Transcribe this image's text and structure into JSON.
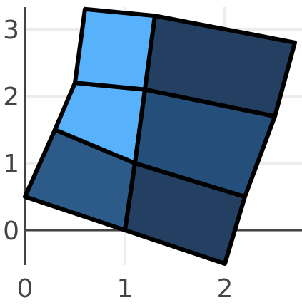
{
  "chart_data": {
    "type": "heatmap",
    "subtype": "quadrilateral-mesh",
    "title": "",
    "xlabel": "",
    "ylabel": "",
    "xlim": [
      0,
      2.7
    ],
    "ylim": [
      -0.5,
      3.3
    ],
    "xticks": [
      0,
      1,
      2
    ],
    "yticks": [
      0,
      1,
      2,
      3
    ],
    "x_tick_labels": [
      "0",
      "1",
      "2"
    ],
    "y_tick_labels": [
      "0",
      "1",
      "2",
      "3"
    ],
    "grid": true,
    "colors": {
      "grid": "#ececec",
      "axis": "#444444",
      "edge": "#000000",
      "cell_light": "#57b2fb",
      "cell_medium": "#2c5a89",
      "cell_dark": "#233f61",
      "cell_mid_dark": "#244f7b"
    },
    "nodes": {
      "x": [
        [
          0.0,
          1.0,
          2.0
        ],
        [
          0.3,
          1.1,
          2.2
        ],
        [
          0.5,
          1.2,
          2.5
        ],
        [
          0.6,
          1.3,
          2.7
        ]
      ],
      "y": [
        [
          0.5,
          0.0,
          -0.5
        ],
        [
          1.5,
          1.0,
          0.5
        ],
        [
          2.2,
          2.1,
          1.7
        ],
        [
          3.3,
          3.2,
          2.8
        ]
      ]
    },
    "cells": [
      {
        "row": 0,
        "col": 0,
        "color": "cell_medium"
      },
      {
        "row": 0,
        "col": 1,
        "color": "cell_dark"
      },
      {
        "row": 1,
        "col": 0,
        "color": "cell_light"
      },
      {
        "row": 1,
        "col": 1,
        "color": "cell_mid_dark"
      },
      {
        "row": 2,
        "col": 0,
        "color": "cell_light"
      },
      {
        "row": 2,
        "col": 1,
        "color": "cell_dark"
      }
    ]
  }
}
